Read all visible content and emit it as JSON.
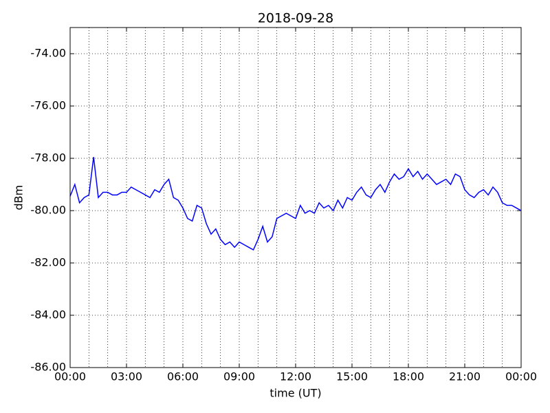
{
  "chart_data": {
    "type": "line",
    "title": "2018-09-28",
    "x_label": "time (UT)",
    "y_label": "dBm",
    "x": [
      0,
      0.25,
      0.5,
      0.75,
      1,
      1.25,
      1.5,
      1.75,
      2,
      2.25,
      2.5,
      2.75,
      3,
      3.25,
      3.5,
      3.75,
      4,
      4.25,
      4.5,
      4.75,
      5,
      5.25,
      5.5,
      5.75,
      6,
      6.25,
      6.5,
      6.75,
      7,
      7.25,
      7.5,
      7.75,
      8,
      8.25,
      8.5,
      8.75,
      9,
      9.25,
      9.5,
      9.75,
      10,
      10.25,
      10.5,
      10.75,
      11,
      11.25,
      11.5,
      11.75,
      12,
      12.25,
      12.5,
      12.75,
      13,
      13.25,
      13.5,
      13.75,
      14,
      14.25,
      14.5,
      14.75,
      15,
      15.25,
      15.5,
      15.75,
      16,
      16.25,
      16.5,
      16.75,
      17,
      17.25,
      17.5,
      17.75,
      18,
      18.25,
      18.5,
      18.75,
      19,
      19.25,
      19.5,
      19.75,
      20,
      20.25,
      20.5,
      20.75,
      21,
      21.25,
      21.5,
      21.75,
      22,
      22.25,
      22.5,
      22.75,
      23,
      23.25,
      23.5,
      23.75,
      24
    ],
    "series": [
      {
        "color": "#0000ff",
        "values": [
          -79.45,
          -79.0,
          -79.7,
          -79.5,
          -79.4,
          -77.95,
          -79.5,
          -79.3,
          -79.3,
          -79.4,
          -79.4,
          -79.3,
          -79.3,
          -79.1,
          -79.2,
          -79.3,
          -79.4,
          -79.5,
          -79.2,
          -79.3,
          -79.0,
          -78.8,
          -79.5,
          -79.6,
          -79.9,
          -80.3,
          -80.4,
          -79.8,
          -79.9,
          -80.5,
          -80.9,
          -80.7,
          -81.1,
          -81.3,
          -81.2,
          -81.4,
          -81.2,
          -81.3,
          -81.4,
          -81.5,
          -81.1,
          -80.6,
          -81.2,
          -81.0,
          -80.3,
          -80.2,
          -80.1,
          -80.2,
          -80.3,
          -79.8,
          -80.1,
          -80.0,
          -80.1,
          -79.7,
          -79.9,
          -79.8,
          -80.0,
          -79.6,
          -79.9,
          -79.5,
          -79.6,
          -79.3,
          -79.1,
          -79.4,
          -79.5,
          -79.2,
          -79.0,
          -79.3,
          -78.9,
          -78.6,
          -78.8,
          -78.7,
          -78.4,
          -78.7,
          -78.5,
          -78.8,
          -78.6,
          -78.8,
          -79.0,
          -78.9,
          -78.8,
          -79.0,
          -78.6,
          -78.7,
          -79.2,
          -79.4,
          -79.5,
          -79.3,
          -79.2,
          -79.4,
          -79.1,
          -79.3,
          -79.7,
          -79.8,
          -79.8,
          -79.9,
          -80.0
        ]
      }
    ],
    "xlim": [
      0,
      24
    ],
    "xticks": [
      {
        "value": 0,
        "label": "00:00"
      },
      {
        "value": 3,
        "label": "03:00"
      },
      {
        "value": 6,
        "label": "06:00"
      },
      {
        "value": 9,
        "label": "09:00"
      },
      {
        "value": 12,
        "label": "12:00"
      },
      {
        "value": 15,
        "label": "15:00"
      },
      {
        "value": 18,
        "label": "18:00"
      },
      {
        "value": 21,
        "label": "21:00"
      },
      {
        "value": 24,
        "label": "00:00"
      }
    ],
    "xminorticks": [
      1,
      2,
      4,
      5,
      7,
      8,
      10,
      11,
      13,
      14,
      16,
      17,
      19,
      20,
      22,
      23
    ],
    "ylim": [
      -86,
      -73
    ],
    "yticks": [
      {
        "value": -86,
        "label": "-86.00"
      },
      {
        "value": -84,
        "label": "-84.00"
      },
      {
        "value": -82,
        "label": "-82.00"
      },
      {
        "value": -80,
        "label": "-80.00"
      },
      {
        "value": -78,
        "label": "-78.00"
      },
      {
        "value": -76,
        "label": "-76.00"
      },
      {
        "value": -74,
        "label": "-74.00"
      }
    ],
    "grid": true
  }
}
